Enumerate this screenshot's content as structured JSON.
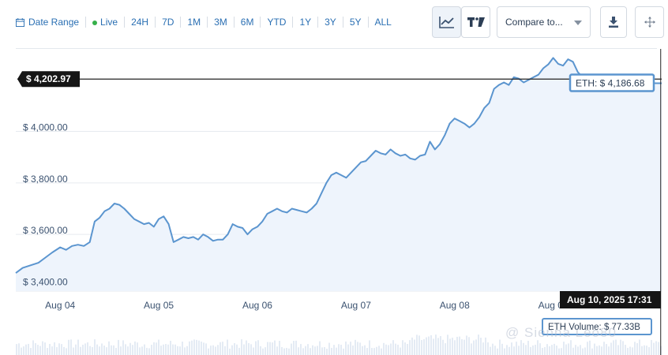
{
  "toolbar": {
    "date_range_label": "Date Range",
    "live_label": "Live",
    "ranges": [
      "24H",
      "7D",
      "1M",
      "3M",
      "6M",
      "YTD",
      "1Y",
      "3Y",
      "5Y",
      "ALL"
    ],
    "compare_label": "Compare to...",
    "icons": [
      "line-chart-icon",
      "tradingview-icon",
      "download-icon",
      "move-icon"
    ]
  },
  "watermark": "@ Sienna Leo80",
  "colors": {
    "line": "#5b95cf",
    "fill": "#eef4fc",
    "crosshair": "#222222",
    "label_bg": "#151515"
  },
  "chart_data": {
    "type": "area",
    "xlabel": "",
    "ylabel": "",
    "ylim": [
      3380,
      4320
    ],
    "yticks": [
      3400,
      3600,
      3800,
      4000
    ],
    "ytick_labels": [
      "$ 3,400.00",
      "$ 3,600.00",
      "$ 3,800.00",
      "$ 4,000.00"
    ],
    "xlim": [
      3.55,
      10.1
    ],
    "xticks": [
      4,
      5,
      6,
      7,
      8,
      9
    ],
    "xtick_labels": [
      "Aug 04",
      "Aug 05",
      "Aug 06",
      "Aug 07",
      "Aug 08",
      "Aug 09"
    ],
    "grid": true,
    "crosshair_price_label": "$ 4,202.97",
    "crosshair_price": 4202.97,
    "crosshair_x": 10.09,
    "crosshair_date_label": "Aug 10, 2025 17:31",
    "tooltip_label": "ETH: $ 4,186.68",
    "volume_label": "ETH Volume: $ 77.33B",
    "series": [
      {
        "x": [
          3.55,
          3.62,
          3.7,
          3.78,
          3.85,
          3.92,
          4.0,
          4.06,
          4.12,
          4.18,
          4.24,
          4.3,
          4.35,
          4.4,
          4.45,
          4.5,
          4.55,
          4.6,
          4.65,
          4.7,
          4.75,
          4.8,
          4.85,
          4.9,
          4.95,
          5.0,
          5.05,
          5.1,
          5.15,
          5.2,
          5.25,
          5.3,
          5.35,
          5.4,
          5.45,
          5.5,
          5.55,
          5.6,
          5.65,
          5.7,
          5.75,
          5.8,
          5.85,
          5.9,
          5.95,
          6.0,
          6.05,
          6.1,
          6.15,
          6.2,
          6.25,
          6.3,
          6.35,
          6.4,
          6.45,
          6.5,
          6.55,
          6.6,
          6.65,
          6.7,
          6.75,
          6.8,
          6.85,
          6.9,
          6.95,
          7.0,
          7.05,
          7.1,
          7.15,
          7.2,
          7.25,
          7.3,
          7.35,
          7.4,
          7.45,
          7.5,
          7.55,
          7.6,
          7.65,
          7.7,
          7.75,
          7.8,
          7.85,
          7.9,
          7.95,
          8.0,
          8.05,
          8.1,
          8.15,
          8.2,
          8.25,
          8.3,
          8.35,
          8.4,
          8.45,
          8.5,
          8.55,
          8.6,
          8.65,
          8.7,
          8.75,
          8.8,
          8.85,
          8.9,
          8.95,
          9.0,
          9.05,
          9.1,
          9.15,
          9.2,
          9.25,
          9.3,
          9.35,
          9.4,
          9.45,
          9.5,
          9.55,
          9.6,
          9.65,
          9.7,
          9.75,
          9.8,
          9.85,
          9.9,
          9.95,
          10.0,
          10.05,
          10.1
        ],
        "y": [
          3450,
          3470,
          3480,
          3490,
          3510,
          3530,
          3550,
          3540,
          3555,
          3560,
          3555,
          3570,
          3650,
          3665,
          3690,
          3700,
          3720,
          3715,
          3700,
          3680,
          3660,
          3650,
          3640,
          3645,
          3630,
          3660,
          3670,
          3640,
          3570,
          3580,
          3590,
          3585,
          3590,
          3580,
          3600,
          3590,
          3575,
          3580,
          3580,
          3600,
          3640,
          3630,
          3625,
          3600,
          3620,
          3630,
          3650,
          3680,
          3690,
          3700,
          3690,
          3685,
          3700,
          3695,
          3690,
          3685,
          3700,
          3720,
          3760,
          3800,
          3830,
          3840,
          3830,
          3820,
          3840,
          3860,
          3880,
          3885,
          3905,
          3925,
          3915,
          3910,
          3930,
          3915,
          3905,
          3910,
          3895,
          3890,
          3905,
          3910,
          3960,
          3930,
          3950,
          3985,
          4030,
          4050,
          4040,
          4030,
          4015,
          4030,
          4055,
          4090,
          4110,
          4165,
          4180,
          4190,
          4180,
          4210,
          4205,
          4190,
          4200,
          4210,
          4220,
          4245,
          4260,
          4285,
          4262,
          4255,
          4280,
          4270,
          4230,
          4210,
          4205,
          4200,
          4195,
          4190,
          4195,
          4198,
          4196,
          4194,
          4192,
          4190,
          4188,
          4187,
          4186.68,
          4186.68,
          4186.68,
          4186.68
        ]
      }
    ]
  }
}
